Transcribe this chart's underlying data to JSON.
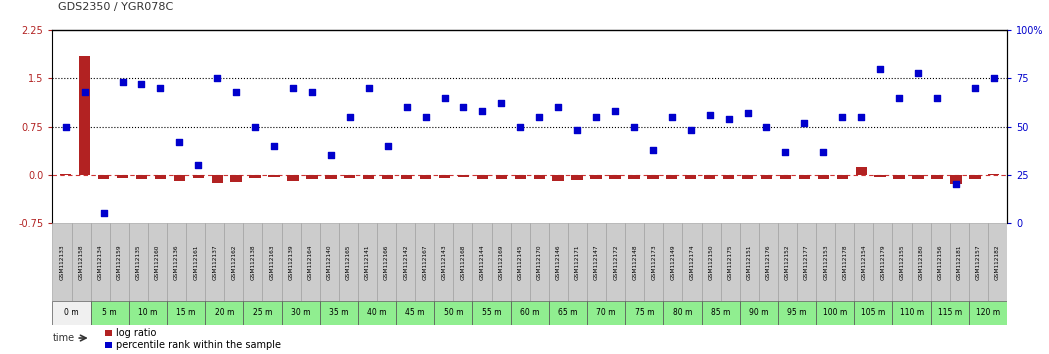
{
  "title": "GDS2350 / YGR078C",
  "gsm_labels": [
    "GSM112133",
    "GSM112158",
    "GSM112134",
    "GSM112159",
    "GSM112135",
    "GSM112160",
    "GSM112136",
    "GSM112161",
    "GSM112137",
    "GSM112162",
    "GSM112138",
    "GSM112163",
    "GSM112139",
    "GSM112164",
    "GSM112140",
    "GSM112165",
    "GSM112141",
    "GSM112166",
    "GSM112142",
    "GSM112167",
    "GSM112143",
    "GSM112168",
    "GSM112144",
    "GSM112169",
    "GSM112145",
    "GSM112170",
    "GSM112146",
    "GSM112171",
    "GSM112147",
    "GSM112172",
    "GSM112148",
    "GSM112173",
    "GSM112149",
    "GSM112174",
    "GSM112150",
    "GSM112175",
    "GSM112151",
    "GSM112176",
    "GSM112152",
    "GSM112177",
    "GSM112153",
    "GSM112178",
    "GSM112154",
    "GSM112179",
    "GSM112155",
    "GSM112180",
    "GSM112156",
    "GSM112181",
    "GSM112157",
    "GSM112182"
  ],
  "time_labels": [
    "0 m",
    "5 m",
    "10 m",
    "15 m",
    "20 m",
    "25 m",
    "30 m",
    "35 m",
    "40 m",
    "45 m",
    "50 m",
    "55 m",
    "60 m",
    "65 m",
    "70 m",
    "75 m",
    "80 m",
    "85 m",
    "90 m",
    "95 m",
    "100 m",
    "105 m",
    "110 m",
    "115 m",
    "120 m"
  ],
  "log_ratio": [
    0.02,
    1.85,
    -0.06,
    -0.05,
    -0.07,
    -0.06,
    -0.1,
    -0.05,
    -0.12,
    -0.11,
    -0.05,
    -0.04,
    -0.1,
    -0.06,
    -0.07,
    -0.05,
    -0.06,
    -0.06,
    -0.06,
    -0.06,
    -0.05,
    -0.04,
    -0.06,
    -0.06,
    -0.06,
    -0.06,
    -0.1,
    -0.08,
    -0.06,
    -0.06,
    -0.06,
    -0.06,
    -0.06,
    -0.06,
    -0.06,
    -0.06,
    -0.06,
    -0.06,
    -0.06,
    -0.06,
    -0.06,
    -0.06,
    0.12,
    -0.04,
    -0.06,
    -0.06,
    -0.06,
    -0.14,
    -0.06,
    0.02
  ],
  "percentile_rank": [
    50,
    68,
    5,
    73,
    72,
    70,
    42,
    30,
    75,
    68,
    50,
    40,
    70,
    68,
    35,
    55,
    70,
    40,
    60,
    55,
    65,
    60,
    58,
    62,
    50,
    55,
    60,
    48,
    55,
    58,
    50,
    38,
    55,
    48,
    56,
    54,
    57,
    50,
    37,
    52,
    37,
    55,
    55,
    80,
    65,
    78,
    65,
    20,
    70,
    75
  ],
  "left_yticks": [
    -0.75,
    0.0,
    0.75,
    1.5,
    2.25
  ],
  "right_yticks": [
    0,
    25,
    50,
    75,
    100
  ],
  "ylim_left": [
    -0.75,
    2.25
  ],
  "ylim_right": [
    0,
    100
  ],
  "hline_values": [
    0.75,
    1.5
  ],
  "bar_color": "#b22222",
  "scatter_color": "#0000cc",
  "hline_color": "#000000",
  "zero_line_color": "#cc3333",
  "bg_color": "#ffffff",
  "gsm_cell_color": "#cccccc",
  "gsm_border_color": "#999999",
  "time_bg_white": "#f0f0f0",
  "time_bg_green": "#90ee90",
  "legend_log_ratio": "log ratio",
  "legend_percentile": "percentile rank within the sample"
}
